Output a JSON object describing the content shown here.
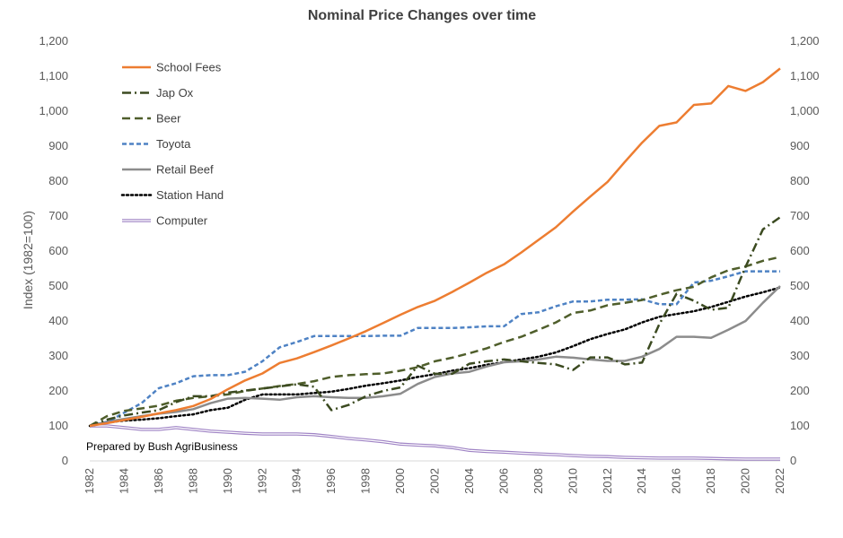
{
  "chart_data": {
    "type": "line",
    "title": "Nominal Price Changes over time",
    "ylabel": "Index (1982=100)",
    "xlabel": "",
    "ylim": [
      0,
      1200
    ],
    "yticks": [
      0,
      100,
      200,
      300,
      400,
      500,
      600,
      700,
      800,
      900,
      1000,
      1100,
      1200
    ],
    "ytick_labels": [
      "0",
      "100",
      "200",
      "300",
      "400",
      "500",
      "600",
      "700",
      "800",
      "900",
      "1,000",
      "1,100",
      "1,200"
    ],
    "xlim": [
      1982,
      2022
    ],
    "xtick_labels": [
      "1982",
      "1984",
      "1986",
      "1988",
      "1990",
      "1992",
      "1994",
      "1996",
      "1998",
      "2000",
      "2002",
      "2004",
      "2006",
      "2008",
      "2010",
      "2012",
      "2014",
      "2016",
      "2018",
      "2020",
      "2022"
    ],
    "grid": false,
    "secondary_axis": true,
    "legend_position": "top-left",
    "annotation": "Prepared by Bush AgriBusiness",
    "x": [
      1982,
      1983,
      1984,
      1985,
      1986,
      1987,
      1988,
      1989,
      1990,
      1991,
      1992,
      1993,
      1994,
      1995,
      1996,
      1997,
      1998,
      1999,
      2000,
      2001,
      2002,
      2003,
      2004,
      2005,
      2006,
      2007,
      2008,
      2009,
      2010,
      2011,
      2012,
      2013,
      2014,
      2015,
      2016,
      2017,
      2018,
      2019,
      2020,
      2021,
      2022
    ],
    "series": [
      {
        "name": "School Fees",
        "color": "#ED7D31",
        "style": "solid",
        "values": [
          100,
          108,
          117,
          126,
          136,
          145,
          157,
          177,
          205,
          230,
          250,
          280,
          293,
          311,
          330,
          350,
          371,
          394,
          418,
          440,
          458,
          483,
          510,
          538,
          562,
          596,
          632,
          668,
          713,
          756,
          798,
          855,
          910,
          958,
          968,
          1018,
          1022,
          1072,
          1058,
          1083,
          1122
        ]
      },
      {
        "name": "Jap Ox",
        "color": "#3B4A20",
        "style": "dashdot",
        "values": [
          100,
          118,
          130,
          138,
          145,
          168,
          185,
          185,
          195,
          201,
          207,
          213,
          219,
          212,
          145,
          160,
          185,
          200,
          210,
          272,
          249,
          249,
          278,
          285,
          290,
          285,
          280,
          276,
          260,
          296,
          296,
          276,
          281,
          391,
          478,
          458,
          432,
          438,
          555,
          662,
          697
        ]
      },
      {
        "name": "Beer",
        "color": "#4F5E2B",
        "style": "dash",
        "values": [
          100,
          128,
          143,
          150,
          158,
          172,
          180,
          185,
          190,
          200,
          207,
          214,
          220,
          228,
          240,
          245,
          248,
          250,
          258,
          268,
          285,
          295,
          308,
          322,
          340,
          355,
          375,
          396,
          423,
          430,
          445,
          452,
          460,
          475,
          488,
          498,
          525,
          545,
          556,
          572,
          583
        ]
      },
      {
        "name": "Toyota",
        "color": "#4E82C4",
        "style": "shortdash",
        "values": [
          100,
          110,
          138,
          165,
          208,
          222,
          242,
          245,
          245,
          255,
          285,
          325,
          340,
          357,
          357,
          357,
          357,
          358,
          358,
          380,
          380,
          380,
          382,
          385,
          385,
          420,
          425,
          442,
          456,
          456,
          461,
          461,
          462,
          448,
          448,
          510,
          515,
          528,
          542,
          542,
          542
        ]
      },
      {
        "name": "Retail Beef",
        "color": "#8C8C8C",
        "style": "solid",
        "values": [
          100,
          112,
          120,
          128,
          135,
          140,
          148,
          165,
          178,
          180,
          178,
          175,
          182,
          185,
          182,
          180,
          180,
          185,
          192,
          220,
          240,
          250,
          255,
          270,
          282,
          285,
          290,
          298,
          295,
          290,
          286,
          286,
          298,
          320,
          355,
          355,
          352,
          375,
          400,
          452,
          500
        ]
      },
      {
        "name": "Station Hand",
        "color": "#000000",
        "style": "dot",
        "values": [
          100,
          110,
          115,
          118,
          122,
          128,
          133,
          145,
          152,
          175,
          190,
          190,
          190,
          194,
          198,
          206,
          215,
          222,
          230,
          240,
          248,
          258,
          265,
          275,
          282,
          290,
          298,
          310,
          328,
          348,
          363,
          376,
          396,
          412,
          420,
          428,
          440,
          455,
          470,
          482,
          496
        ]
      },
      {
        "name": "Computer",
        "color": "#9E82C4",
        "style": "double",
        "values": [
          100,
          100,
          95,
          90,
          90,
          95,
          90,
          85,
          82,
          79,
          77,
          77,
          77,
          75,
          70,
          64,
          60,
          55,
          48,
          45,
          43,
          38,
          30,
          27,
          25,
          22,
          20,
          18,
          15,
          13,
          12,
          10,
          9,
          8,
          8,
          8,
          7,
          6,
          5,
          5,
          5
        ]
      }
    ]
  }
}
